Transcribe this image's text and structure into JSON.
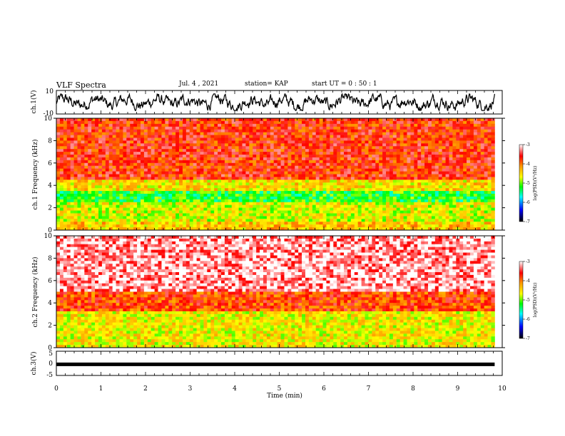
{
  "header": {
    "title": "VLF Spectra",
    "date": "Jul. 4 , 2021",
    "station": "station= KAP",
    "start": "start UT = 0 : 50 : 1"
  },
  "chart_data": [
    {
      "type": "line",
      "panel": "ch1-waveform",
      "ylabel": "ch.1(V)",
      "ylim": [
        -10,
        10
      ],
      "yticks": [
        "10",
        "-10"
      ],
      "x_range_min": [
        0,
        9.83
      ],
      "description_level": "noisy waveform oscillating between about -6 and 6 V"
    },
    {
      "type": "heatmap",
      "panel": "ch1-spectrogram",
      "ylabel": "ch.1 Frequency (kHz)",
      "ylim": [
        0,
        10
      ],
      "yticks": [
        "0",
        "2",
        "4",
        "6",
        "8",
        "10"
      ],
      "colorbar": {
        "label": "log(PSD)(V²/Hz)",
        "ticks": [
          "-3",
          "-4",
          "-5",
          "-6",
          "-7"
        ],
        "range": [
          -7,
          -3
        ]
      },
      "bands_khz": [
        {
          "from": 0,
          "to": 0.8,
          "level": -4.4
        },
        {
          "from": 0.8,
          "to": 2.4,
          "level": -4.7
        },
        {
          "from": 2.4,
          "to": 3.6,
          "level": -5.2
        },
        {
          "from": 3.6,
          "to": 4.6,
          "level": -4.5
        },
        {
          "from": 4.6,
          "to": 10,
          "level": -3.7
        }
      ]
    },
    {
      "type": "heatmap",
      "panel": "ch2-spectrogram",
      "ylabel": "ch.2 Frequency (kHz)",
      "ylim": [
        0,
        10
      ],
      "yticks": [
        "0",
        "2",
        "4",
        "6",
        "8",
        "10"
      ],
      "colorbar": {
        "label": "log(PSD)(V²/Hz)",
        "ticks": [
          "-3",
          "-4",
          "-5",
          "-6",
          "-7"
        ],
        "range": [
          -7,
          -3
        ]
      },
      "bands_khz": [
        {
          "from": 0,
          "to": 3.2,
          "level": -4.6
        },
        {
          "from": 3.2,
          "to": 5.0,
          "level": -3.8
        },
        {
          "from": 5.0,
          "to": 10,
          "level": -3.2
        }
      ]
    },
    {
      "type": "line",
      "panel": "ch3-waveform",
      "ylabel": "ch.3(V)",
      "xlabel": "Time (min)",
      "ylim": [
        -5,
        5
      ],
      "yticks": [
        "5",
        "0",
        "-5"
      ],
      "xlim": [
        0,
        10
      ],
      "xticks": [
        "0",
        "1",
        "2",
        "3",
        "4",
        "5",
        "6",
        "7",
        "8",
        "9",
        "10"
      ],
      "level_v": -0.4
    }
  ],
  "colors": {
    "white": "#ffffff",
    "red": "#ff0000",
    "orange": "#ff9900",
    "yellow": "#ffff00",
    "green": "#00ff00",
    "cyan": "#00ffff",
    "blue": "#0000ff",
    "black": "#000000"
  }
}
